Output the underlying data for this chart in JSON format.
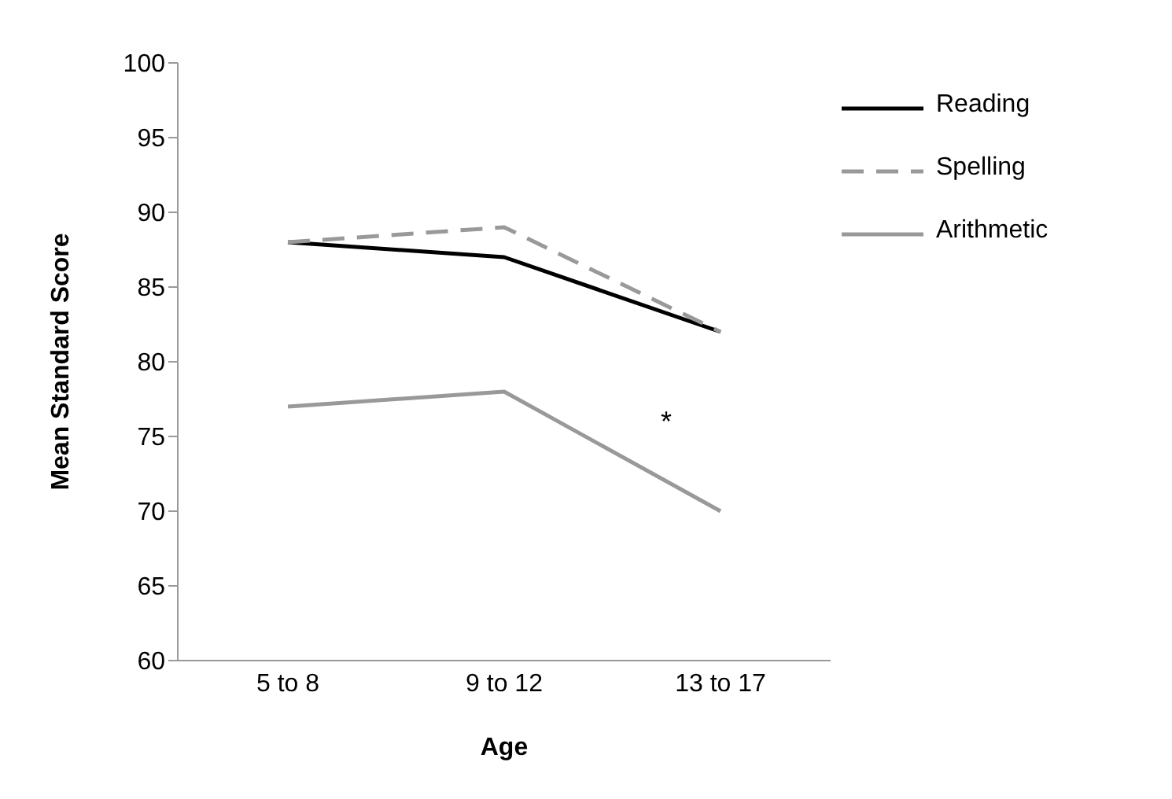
{
  "chart_data": {
    "type": "line",
    "xlabel": "Age",
    "ylabel": "Mean Standard Score",
    "categories": [
      "5 to 8",
      "9 to 12",
      "13 to 17"
    ],
    "series": [
      {
        "name": "Reading",
        "color": "#000000",
        "values": [
          88,
          87,
          82
        ],
        "line_style": "solid"
      },
      {
        "name": "Spelling",
        "color": "#999999",
        "values": [
          88,
          89,
          82
        ],
        "line_style": "dashed"
      },
      {
        "name": "Arithmetic",
        "color": "#999999",
        "values": [
          77,
          78,
          70
        ],
        "line_style": "solid"
      }
    ],
    "ylim": [
      60,
      100
    ],
    "yticks": [
      60,
      65,
      70,
      75,
      80,
      85,
      90,
      95,
      100
    ],
    "legend": "top right",
    "marker": "none",
    "annotations": [
      "*"
    ]
  }
}
